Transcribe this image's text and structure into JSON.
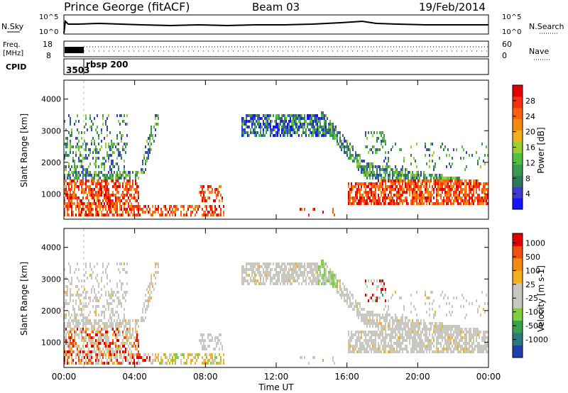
{
  "header": {
    "station": "Prince George (fitACF)",
    "beam": "Beam 03",
    "date": "19/Feb/2014"
  },
  "top_panels": {
    "nsky": {
      "label": "N.Sky",
      "tick_top": "10^5",
      "tick_bottom": "10^0",
      "right_label": "N.Search",
      "right_tick_top": "10^5",
      "right_tick_bottom": "10^0"
    },
    "freq": {
      "label": "Freq.",
      "units": "[MHz]",
      "ylim": [
        8,
        18
      ],
      "tick_top": "18",
      "tick_bottom": "8",
      "right_label": "Nave",
      "right_tick_top": "60",
      "right_tick_bottom": "0"
    },
    "cpid": {
      "label": "CPID",
      "values": [
        "3503",
        "rbsp 200"
      ]
    }
  },
  "chart_data": [
    {
      "type": "heatmap",
      "name": "power",
      "ylabel": "Slant Range [km]",
      "xlabel": "Time UT",
      "ylim": [
        200,
        4600
      ],
      "yticks": [
        "1000",
        "2000",
        "3000",
        "4000"
      ],
      "xticks": [
        "00:00",
        "04:00",
        "08:00",
        "12:00",
        "16:00",
        "20:00",
        "00:00"
      ],
      "colorbar": {
        "label": "Power [dB]",
        "ticks": [
          "4",
          "8",
          "12",
          "16",
          "20",
          "24",
          "28"
        ],
        "colors": [
          "#1414ff",
          "#3c3cd0",
          "#2f7a5a",
          "#3a9a50",
          "#55c040",
          "#9acd32",
          "#f0b020",
          "#f58a10",
          "#ff6010",
          "#f83010",
          "#e00000"
        ]
      }
    },
    {
      "type": "heatmap",
      "name": "velocity",
      "ylabel": "Slant Range [km]",
      "xlabel": "Time UT",
      "ylim": [
        200,
        4600
      ],
      "yticks": [
        "1000",
        "2000",
        "3000",
        "4000"
      ],
      "xticks": [
        "00:00",
        "04:00",
        "08:00",
        "12:00",
        "16:00",
        "20:00",
        "00:00"
      ],
      "colorbar": {
        "label": "Velocity [m s-1]",
        "ticks": [
          "1000",
          "500",
          "100",
          "25",
          "-25",
          "-100",
          "-500",
          "-1000"
        ],
        "colors": [
          "#2040b0",
          "#2a7a80",
          "#3aa050",
          "#7fd040",
          "#c8c8c0",
          "#c8c8c0",
          "#f5b020",
          "#f58a10",
          "#f05010",
          "#e00000"
        ]
      }
    }
  ],
  "time_axis": {
    "label": "Time UT",
    "ticks": [
      "00:00",
      "04:00",
      "08:00",
      "12:00",
      "16:00",
      "20:00",
      "00:00"
    ]
  }
}
